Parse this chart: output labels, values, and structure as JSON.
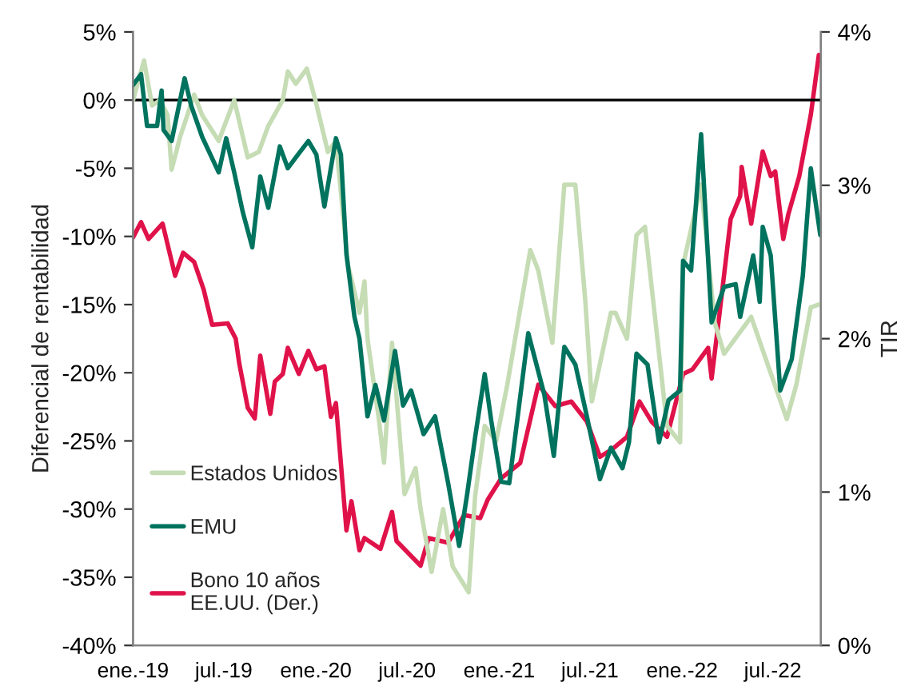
{
  "chart_data": {
    "type": "line",
    "ylabel": "Diferencial de rentabilidad",
    "y2label": "TIR",
    "xlim": [
      "2019-01-01",
      "2022-10-05"
    ],
    "xticks": [
      {
        "value": "2019-01-01",
        "label": "ene.-19"
      },
      {
        "value": "2019-07-01",
        "label": "jul.-19"
      },
      {
        "value": "2020-01-01",
        "label": "ene.-20"
      },
      {
        "value": "2020-07-01",
        "label": "jul.-20"
      },
      {
        "value": "2021-01-01",
        "label": "ene.-21"
      },
      {
        "value": "2021-07-01",
        "label": "jul.-21"
      },
      {
        "value": "2022-01-01",
        "label": "ene.-22"
      },
      {
        "value": "2022-07-01",
        "label": "jul.-22"
      }
    ],
    "ylim": [
      -40,
      5
    ],
    "yticks": [
      {
        "value": -40,
        "label": "-40%"
      },
      {
        "value": -35,
        "label": "-35%"
      },
      {
        "value": -30,
        "label": "-30%"
      },
      {
        "value": -25,
        "label": "-25%"
      },
      {
        "value": -20,
        "label": "-20%"
      },
      {
        "value": -15,
        "label": "-15%"
      },
      {
        "value": -10,
        "label": "-10%"
      },
      {
        "value": -5,
        "label": "-5%"
      },
      {
        "value": 0,
        "label": "0%"
      },
      {
        "value": 5,
        "label": "5%"
      }
    ],
    "y2lim": [
      0,
      4
    ],
    "y2ticks": [
      {
        "value": 0,
        "label": "0%"
      },
      {
        "value": 1,
        "label": "1%"
      },
      {
        "value": 2,
        "label": "2%"
      },
      {
        "value": 3,
        "label": "3%"
      },
      {
        "value": 4,
        "label": "4%"
      }
    ],
    "ref_lines": [
      {
        "axis": "y",
        "value": 0,
        "color": "#000000"
      }
    ],
    "grid": false,
    "legend": "bottom left",
    "marker": "none",
    "line_style": "solid",
    "series": [
      {
        "name": "Estados Unidos",
        "color": "#c5dcb4",
        "x": [
          "2019-01-01",
          "2019-01-23",
          "2019-02-08",
          "2019-02-24",
          "2019-03-11",
          "2019-03-19",
          "2019-04-05",
          "2019-05-03",
          "2019-05-19",
          "2019-06-21",
          "2019-07-22",
          "2019-08-18",
          "2019-09-09",
          "2019-09-28",
          "2019-10-27",
          "2019-11-06",
          "2019-11-22",
          "2019-12-14",
          "2019-12-31",
          "2020-01-25",
          "2020-02-10",
          "2020-03-05",
          "2020-03-28",
          "2020-04-07",
          "2020-04-13",
          "2020-05-05",
          "2020-05-16",
          "2020-06-01",
          "2020-06-26",
          "2020-07-18",
          "2020-07-28",
          "2020-08-19",
          "2020-09-11",
          "2020-09-30",
          "2020-11-01",
          "2020-11-14",
          "2020-12-03",
          "2020-12-26",
          "2021-01-17",
          "2021-03-04",
          "2021-03-20",
          "2021-04-17",
          "2021-05-11",
          "2021-06-02",
          "2021-06-22",
          "2021-07-05",
          "2021-08-12",
          "2021-08-21",
          "2021-09-13",
          "2021-10-02",
          "2021-10-19",
          "2021-12-02",
          "2021-12-28",
          "2022-01-03",
          "2022-02-08",
          "2022-03-07",
          "2022-03-26",
          "2022-05-19",
          "2022-06-21",
          "2022-07-29",
          "2022-08-17",
          "2022-09-15",
          "2022-10-01"
        ],
        "values": [
          0,
          2.9,
          -0.4,
          0,
          -1.1,
          -5.1,
          -2.7,
          0.4,
          -1.1,
          -3.0,
          0,
          -4.2,
          -3.8,
          -1.9,
          0,
          2.1,
          1.2,
          2.3,
          0,
          -3.8,
          -3.0,
          -12.1,
          -15.6,
          -13.3,
          -17.5,
          -23.2,
          -26.6,
          -17.8,
          -28.9,
          -27.0,
          -30.0,
          -34.6,
          -30.0,
          -34.2,
          -36.1,
          -29.0,
          -23.9,
          -25.0,
          -20.9,
          -11.0,
          -12.5,
          -17.8,
          -6.2,
          -6.2,
          -14.8,
          -22.1,
          -15.6,
          -15.6,
          -17.5,
          -9.9,
          -9.3,
          -23.9,
          -25.1,
          -12.1,
          -6.2,
          -16.3,
          -18.6,
          -15.9,
          -19.4,
          -23.4,
          -20.9,
          -15.2,
          -15.0
        ]
      },
      {
        "name": "EMU",
        "color": "#00735f",
        "x": [
          "2019-01-01",
          "2019-01-17",
          "2019-01-29",
          "2019-02-18",
          "2019-02-27",
          "2019-03-03",
          "2019-03-19",
          "2019-04-14",
          "2019-04-27",
          "2019-05-19",
          "2019-06-21",
          "2019-07-06",
          "2019-07-22",
          "2019-08-08",
          "2019-08-27",
          "2019-09-12",
          "2019-09-28",
          "2019-10-21",
          "2019-11-06",
          "2019-11-22",
          "2019-12-17",
          "2020-01-02",
          "2020-01-18",
          "2020-02-10",
          "2020-02-20",
          "2020-03-02",
          "2020-03-18",
          "2020-03-28",
          "2020-04-13",
          "2020-04-29",
          "2020-05-16",
          "2020-06-07",
          "2020-06-23",
          "2020-07-09",
          "2020-08-03",
          "2020-08-26",
          "2020-09-21",
          "2020-10-13",
          "2020-10-29",
          "2020-11-14",
          "2020-12-03",
          "2020-12-16",
          "2021-01-05",
          "2021-01-21",
          "2021-02-28",
          "2021-04-01",
          "2021-04-20",
          "2021-05-11",
          "2021-06-02",
          "2021-06-25",
          "2021-07-21",
          "2021-08-12",
          "2021-09-04",
          "2021-09-17",
          "2021-10-02",
          "2021-10-24",
          "2021-11-16",
          "2021-12-05",
          "2021-12-28",
          "2022-01-03",
          "2022-01-19",
          "2022-02-08",
          "2022-03-01",
          "2022-03-26",
          "2022-04-18",
          "2022-04-27",
          "2022-05-23",
          "2022-06-05",
          "2022-06-11",
          "2022-06-27",
          "2022-07-16",
          "2022-08-08",
          "2022-08-30",
          "2022-09-15",
          "2022-09-28",
          "2022-10-04"
        ],
        "values": [
          1.1,
          1.9,
          -1.9,
          -1.9,
          0.7,
          -2.2,
          -3.0,
          1.6,
          -0.4,
          -2.7,
          -5.3,
          -2.8,
          -5.3,
          -8.2,
          -10.8,
          -5.6,
          -7.9,
          -3.4,
          -5.0,
          -4.2,
          -3.0,
          -4.0,
          -7.8,
          -2.8,
          -4.0,
          -11.3,
          -15.9,
          -17.5,
          -23.2,
          -20.9,
          -23.5,
          -18.4,
          -22.4,
          -21.3,
          -24.5,
          -23.2,
          -28.1,
          -32.7,
          -28.9,
          -24.7,
          -20.1,
          -23.5,
          -28.0,
          -28.1,
          -17.1,
          -21.6,
          -26.1,
          -18.1,
          -19.4,
          -23.2,
          -27.8,
          -25.5,
          -27.0,
          -25.1,
          -18.6,
          -19.4,
          -25.1,
          -22.0,
          -21.3,
          -11.8,
          -12.5,
          -2.5,
          -16.3,
          -13.7,
          -13.5,
          -15.9,
          -11.4,
          -14.8,
          -9.3,
          -11.4,
          -21.3,
          -19.0,
          -12.9,
          -5.0,
          -8.4,
          -9.9
        ]
      },
      {
        "name": "Bono 10 años\nEE.UU. (Der.)",
        "color": "#e0124a",
        "axis": "y2",
        "x": [
          "2019-01-01",
          "2019-01-17",
          "2019-02-01",
          "2019-03-01",
          "2019-03-26",
          "2019-04-11",
          "2019-05-03",
          "2019-05-22",
          "2019-06-08",
          "2019-07-09",
          "2019-07-25",
          "2019-08-01",
          "2019-08-18",
          "2019-09-01",
          "2019-09-12",
          "2019-10-02",
          "2019-10-11",
          "2019-10-27",
          "2019-11-06",
          "2019-11-28",
          "2019-12-17",
          "2020-01-02",
          "2020-01-18",
          "2020-01-31",
          "2020-02-10",
          "2020-03-02",
          "2020-03-12",
          "2020-03-28",
          "2020-04-07",
          "2020-05-09",
          "2020-06-01",
          "2020-06-10",
          "2020-07-28",
          "2020-08-13",
          "2020-09-21",
          "2020-10-23",
          "2020-11-24",
          "2020-12-09",
          "2021-01-05",
          "2021-02-12",
          "2021-03-20",
          "2021-04-23",
          "2021-05-25",
          "2021-06-25",
          "2021-07-21",
          "2021-08-15",
          "2021-09-13",
          "2021-10-08",
          "2021-11-01",
          "2021-12-02",
          "2022-01-03",
          "2022-01-22",
          "2022-02-22",
          "2022-03-01",
          "2022-03-17",
          "2022-04-08",
          "2022-04-27",
          "2022-04-30",
          "2022-05-19",
          "2022-06-11",
          "2022-06-27",
          "2022-07-06",
          "2022-07-22",
          "2022-08-01",
          "2022-08-23",
          "2022-09-15",
          "2022-10-01"
        ],
        "values": [
          2.66,
          2.76,
          2.65,
          2.75,
          2.41,
          2.56,
          2.5,
          2.32,
          2.09,
          2.1,
          2.0,
          1.84,
          1.55,
          1.48,
          1.89,
          1.51,
          1.72,
          1.77,
          1.94,
          1.77,
          1.92,
          1.8,
          1.82,
          1.49,
          1.58,
          0.75,
          0.94,
          0.62,
          0.7,
          0.63,
          0.87,
          0.68,
          0.52,
          0.7,
          0.67,
          0.85,
          0.83,
          0.95,
          1.09,
          1.19,
          1.7,
          1.56,
          1.59,
          1.46,
          1.23,
          1.28,
          1.36,
          1.59,
          1.46,
          1.36,
          1.77,
          1.8,
          1.94,
          1.74,
          2.17,
          2.78,
          2.93,
          3.12,
          2.75,
          3.22,
          3.06,
          3.09,
          2.65,
          2.81,
          3.06,
          3.46,
          3.85
        ]
      }
    ]
  }
}
